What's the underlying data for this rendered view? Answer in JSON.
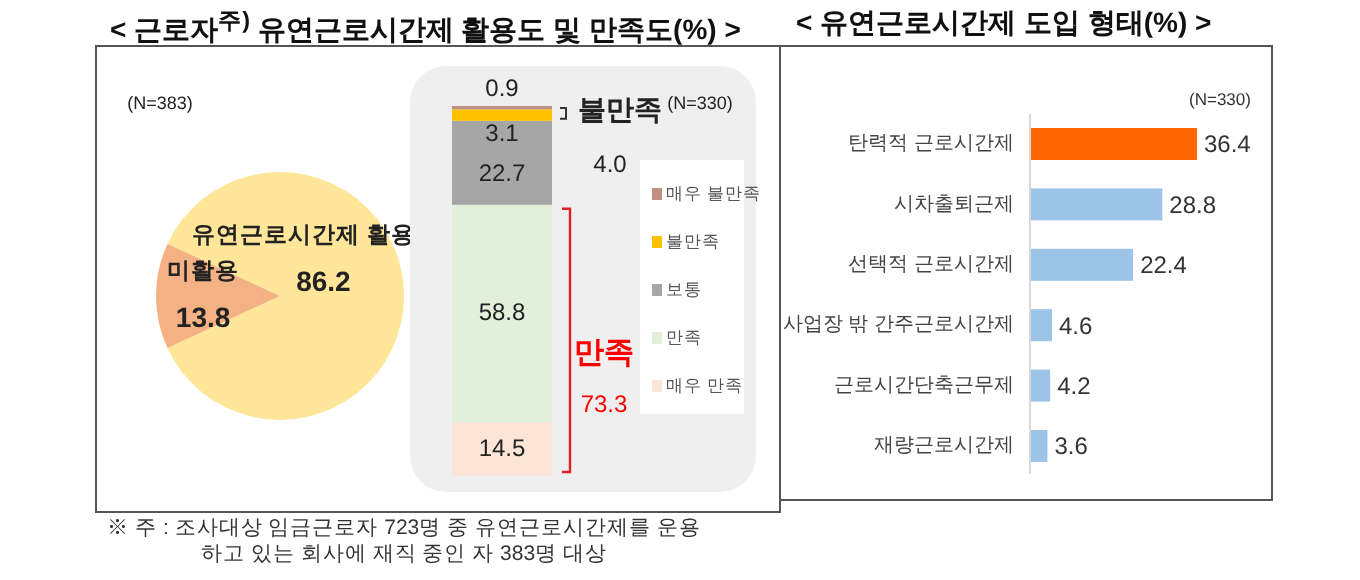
{
  "chart_data": [
    {
      "type": "pie",
      "title": "< 근로자$^{주)}$ 유연근로시간제 활용도 및 만족도(%) >",
      "categories": [
        "유연근로시간제 활용",
        "미활용"
      ],
      "values": [
        86.2,
        13.8
      ],
      "colors": [
        "#ffe699",
        "#f4b183"
      ],
      "data_labels": true,
      "annotations": [
        "(N=383)",
        "※ 주 : 조사대상 임금근로자 723명 중 유연근로시간제를 운용 하고 있는 회사에 재직 중인 자 383명 대상"
      ]
    },
    {
      "type": "bar",
      "stacked": true,
      "categories": [
        null
      ],
      "data_labels": true,
      "legend": "right",
      "series": [
        {
          "name": "매우 만족",
          "color": "#fce4d6",
          "values": [
            14.5
          ]
        },
        {
          "name": "만족",
          "color": "#e2efda",
          "values": [
            58.8
          ]
        },
        {
          "name": "보통",
          "color": "#a6a6a6",
          "values": [
            22.7
          ]
        },
        {
          "name": "불만족",
          "color": "#ffc000",
          "values": [
            3.1
          ]
        },
        {
          "name": "매우 불만족",
          "color": "#c09080",
          "values": [
            0.9
          ]
        }
      ],
      "annotations": [
        "(N=330)",
        "불만족",
        "4.0",
        "만족",
        "73.3"
      ]
    },
    {
      "type": "bar",
      "orientation": "horizontal",
      "title": "< 유연근로시간제 도입 형태(%) >",
      "categories": [
        "탄력적 근로시간제",
        "시차출퇴근제",
        "선택적 근로시간제",
        "사업장 밖 간주근로시간제",
        "근로시간단축근무제",
        "재량근로시간제"
      ],
      "values": [
        36.4,
        28.8,
        22.4,
        4.6,
        4.2,
        3.6
      ],
      "colors": [
        "#ff6600",
        "#9dc3e6",
        "#9dc3e6",
        "#9dc3e6",
        "#9dc3e6",
        "#9dc3e6"
      ],
      "data_labels": true,
      "annotations": [
        "(N=330)"
      ]
    }
  ]
}
